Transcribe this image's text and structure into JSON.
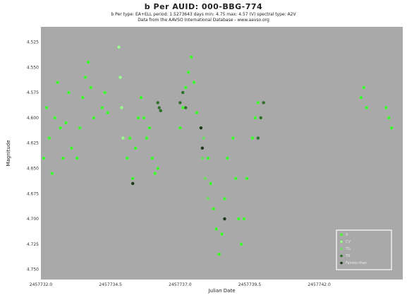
{
  "chart_data": {
    "type": "scatter",
    "title": "b Per   AUID: 000-BBG-774",
    "subtitle": "b Per   type: EA+ELL   period: 1.5273643 days   min: 4.75   max: 4.57 (V)   spectral type: A2V",
    "source": "Data from the AAVSO International Database - www.aavso.org",
    "xlabel": "Julian Date",
    "ylabel": "Magnitude",
    "xlim": [
      2457732.0,
      2457745.0
    ],
    "ylim": [
      4.76,
      4.51
    ],
    "x_ticks": [
      2457732.0,
      2457734.5,
      2457737.0,
      2457739.5,
      2457742.0
    ],
    "x_tick_labels": [
      "2457732.0",
      "2457734.5",
      "2457737.0",
      "2457739.5",
      "2457742.0"
    ],
    "y_ticks": [
      4.525,
      4.55,
      4.575,
      4.6,
      4.625,
      4.65,
      4.675,
      4.7,
      4.725,
      4.75
    ],
    "y_tick_labels": [
      "4.525",
      "4.550",
      "4.575",
      "4.600",
      "4.625",
      "4.650",
      "4.675",
      "4.700",
      "4.725",
      "4.750"
    ],
    "grid": false,
    "background": "#a9a9a9",
    "legend_position": "bottom-right",
    "series": [
      {
        "name": "V",
        "color": "#3cff2c",
        "points": [
          [
            2457732.1,
            4.64
          ],
          [
            2457732.2,
            4.59
          ],
          [
            2457732.3,
            4.62
          ],
          [
            2457732.4,
            4.655
          ],
          [
            2457732.5,
            4.6
          ],
          [
            2457732.6,
            4.565
          ],
          [
            2457732.7,
            4.61
          ],
          [
            2457732.8,
            4.64
          ],
          [
            2457732.9,
            4.605
          ],
          [
            2457733.0,
            4.575
          ],
          [
            2457733.1,
            4.63
          ],
          [
            2457733.3,
            4.64
          ],
          [
            2457733.4,
            4.61
          ],
          [
            2457733.5,
            4.58
          ],
          [
            2457733.6,
            4.56
          ],
          [
            2457733.7,
            4.545
          ],
          [
            2457733.8,
            4.57
          ],
          [
            2457733.9,
            4.6
          ],
          [
            2457734.2,
            4.59
          ],
          [
            2457734.3,
            4.575
          ],
          [
            2457734.4,
            4.595
          ],
          [
            2457735.1,
            4.64
          ],
          [
            2457735.2,
            4.62
          ],
          [
            2457735.3,
            4.66
          ],
          [
            2457735.4,
            4.63
          ],
          [
            2457735.5,
            4.6
          ],
          [
            2457735.6,
            4.58
          ],
          [
            2457735.7,
            4.6
          ],
          [
            2457735.8,
            4.62
          ],
          [
            2457735.9,
            4.61
          ],
          [
            2457736.0,
            4.64
          ],
          [
            2457736.1,
            4.655
          ],
          [
            2457736.2,
            4.65
          ],
          [
            2457737.0,
            4.61
          ],
          [
            2457737.1,
            4.59
          ],
          [
            2457737.2,
            4.57
          ],
          [
            2457737.3,
            4.555
          ],
          [
            2457737.4,
            4.54
          ],
          [
            2457737.5,
            4.565
          ],
          [
            2457737.6,
            4.595
          ],
          [
            2457738.0,
            4.64
          ],
          [
            2457738.1,
            4.665
          ],
          [
            2457738.2,
            4.69
          ],
          [
            2457738.3,
            4.71
          ],
          [
            2457738.4,
            4.735
          ],
          [
            2457738.5,
            4.715
          ],
          [
            2457738.6,
            4.68
          ],
          [
            2457738.7,
            4.64
          ],
          [
            2457738.9,
            4.62
          ],
          [
            2457739.0,
            4.66
          ],
          [
            2457739.1,
            4.7
          ],
          [
            2457739.2,
            4.725
          ],
          [
            2457739.3,
            4.7
          ],
          [
            2457739.4,
            4.66
          ],
          [
            2457739.6,
            4.62
          ],
          [
            2457739.7,
            4.6
          ],
          [
            2457739.8,
            4.585
          ],
          [
            2457739.9,
            4.6
          ],
          [
            2457743.5,
            4.58
          ],
          [
            2457743.6,
            4.57
          ],
          [
            2457743.7,
            4.59
          ],
          [
            2457744.4,
            4.59
          ],
          [
            2457744.5,
            4.6
          ],
          [
            2457744.6,
            4.61
          ]
        ]
      },
      {
        "name": "CV",
        "color": "#9aff8c",
        "points": [
          [
            2457734.8,
            4.53
          ],
          [
            2457734.85,
            4.56
          ],
          [
            2457734.9,
            4.59
          ],
          [
            2457734.95,
            4.62
          ]
        ]
      },
      {
        "name": "TG",
        "color": "#6fdc63",
        "points": [
          [
            2457737.8,
            4.64
          ],
          [
            2457737.9,
            4.66
          ],
          [
            2457738.0,
            4.68
          ],
          [
            2457737.85,
            4.62
          ]
        ]
      },
      {
        "name": "TR",
        "color": "#2f6f2a",
        "points": [
          [
            2457736.2,
            4.585
          ],
          [
            2457736.25,
            4.59
          ],
          [
            2457736.3,
            4.593
          ],
          [
            2457737.0,
            4.585
          ],
          [
            2457737.1,
            4.575
          ],
          [
            2457737.2,
            4.59
          ],
          [
            2457739.8,
            4.62
          ],
          [
            2457739.9,
            4.6
          ],
          [
            2457740.0,
            4.585
          ]
        ]
      },
      {
        "name": "Fainter-than",
        "color": "#1a3a17",
        "points": [
          [
            2457737.75,
            4.61
          ],
          [
            2457737.8,
            4.63
          ],
          [
            2457735.3,
            4.665
          ],
          [
            2457738.6,
            4.7
          ]
        ]
      }
    ]
  }
}
